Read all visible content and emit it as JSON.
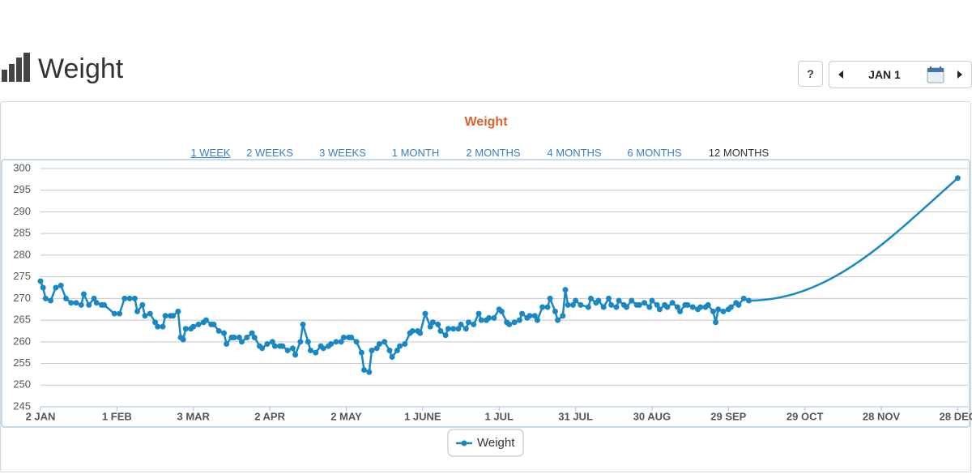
{
  "header": {
    "title": "Weight",
    "help": "?",
    "date": "JAN 1"
  },
  "range_buttons": [
    "1 WEEK",
    "2 WEEKS",
    "3 WEEKS",
    "1 MONTH",
    "2 MONTHS",
    "4 MONTHS",
    "6 MONTHS",
    "12 MONTHS"
  ],
  "chart_data": {
    "type": "line",
    "title": "Weight",
    "x": [
      0,
      1,
      2,
      4,
      6,
      8,
      10,
      12,
      14,
      16,
      17,
      19,
      21,
      22,
      24,
      25,
      29,
      31,
      33,
      35,
      37,
      38,
      40,
      41,
      43,
      45,
      46,
      48,
      49,
      51,
      52,
      54,
      55,
      56,
      57,
      59,
      60,
      62,
      64,
      65,
      67,
      68,
      70,
      72,
      73,
      75,
      76,
      78,
      79,
      81,
      83,
      84,
      86,
      87,
      89,
      91,
      92,
      94,
      95,
      97,
      99,
      100,
      102,
      103,
      105,
      106,
      108,
      110,
      111,
      113,
      114,
      116,
      118,
      119,
      121,
      122,
      124,
      126,
      127,
      129,
      130,
      132,
      133,
      135,
      137,
      138,
      140,
      141,
      143,
      145,
      146,
      148,
      149,
      151,
      153,
      154,
      156,
      157,
      159,
      160,
      162,
      164,
      165,
      167,
      168,
      170,
      172,
      173,
      175,
      176,
      178,
      180,
      181,
      183,
      184,
      186,
      188,
      189,
      191,
      192,
      194,
      195,
      197,
      199,
      200,
      202,
      203,
      205,
      206,
      207,
      209,
      210,
      212,
      215,
      216,
      218,
      219,
      221,
      223,
      224,
      226,
      227,
      229,
      230,
      232,
      234,
      235,
      237,
      239,
      240,
      242,
      243,
      245,
      246,
      248,
      250,
      251,
      253,
      254,
      256,
      258,
      259,
      261,
      262,
      264,
      265,
      266,
      268,
      270,
      271,
      273,
      274,
      276,
      278,
      360
    ],
    "series": [
      {
        "name": "Weight",
        "color": "#1a87c5",
        "values": [
          274,
          272.5,
          270,
          269.5,
          272.5,
          273,
          270,
          269,
          269,
          268.5,
          271,
          268.5,
          270,
          269,
          268.5,
          268.5,
          266.5,
          266.5,
          270,
          270,
          270,
          267,
          268.5,
          266,
          266.5,
          264.5,
          263.5,
          263.5,
          266,
          266,
          266,
          267,
          261,
          260.5,
          263,
          263,
          263.5,
          264,
          264.5,
          265,
          264,
          264,
          262.5,
          262,
          259.5,
          261,
          261,
          261,
          260,
          261,
          262,
          261,
          259,
          258.5,
          259.5,
          260,
          259,
          259,
          259,
          258,
          258.5,
          257,
          260,
          264,
          260,
          258,
          257.5,
          259,
          258.5,
          259,
          259.5,
          260,
          260,
          261,
          261,
          261,
          260,
          257.5,
          253.5,
          253,
          258,
          258.5,
          259.5,
          260,
          258,
          256.5,
          258,
          259,
          259.5,
          262,
          262.5,
          262.5,
          262,
          266.5,
          263.5,
          264.5,
          264,
          262.5,
          261.5,
          263,
          263,
          263,
          264,
          263,
          264.5,
          264,
          266.5,
          265,
          265,
          265.5,
          265.5,
          267.5,
          267,
          264.5,
          264,
          264.5,
          265,
          266.5,
          265.5,
          266,
          266,
          265,
          268,
          268,
          270,
          267,
          265,
          266,
          272,
          268.5,
          268.5,
          269.5,
          268.5,
          268,
          270,
          269,
          269.5,
          268,
          270,
          268.5,
          268,
          269.5,
          268.5,
          268,
          269.5,
          268.5,
          268.5,
          269,
          268,
          269.5,
          268.5,
          267.5,
          268.5,
          268,
          269,
          268,
          267,
          268.5,
          268.5,
          268,
          267.5,
          268,
          268,
          268.5,
          267,
          264.5,
          267.5,
          267,
          267.5,
          268,
          269,
          268.5,
          270,
          269.5,
          297.8
        ]
      }
    ],
    "xlim": [
      0,
      364
    ],
    "xticks": [
      {
        "value": 0,
        "label": "2 JAN"
      },
      {
        "value": 30,
        "label": "1 FEB"
      },
      {
        "value": 60,
        "label": "3 MAR"
      },
      {
        "value": 90,
        "label": "2 APR"
      },
      {
        "value": 120,
        "label": "2 MAY"
      },
      {
        "value": 150,
        "label": "1 JUNE"
      },
      {
        "value": 180,
        "label": "1 JUL"
      },
      {
        "value": 210,
        "label": "31 JUL"
      },
      {
        "value": 240,
        "label": "30 AUG"
      },
      {
        "value": 270,
        "label": "29 SEP"
      },
      {
        "value": 300,
        "label": "29 OCT"
      },
      {
        "value": 330,
        "label": "28 NOV"
      },
      {
        "value": 360,
        "label": "28 DEC"
      }
    ],
    "ylim": [
      245,
      300
    ],
    "yticks": [
      245,
      250,
      255,
      260,
      265,
      270,
      275,
      280,
      285,
      290,
      295,
      300
    ],
    "grid": true
  }
}
